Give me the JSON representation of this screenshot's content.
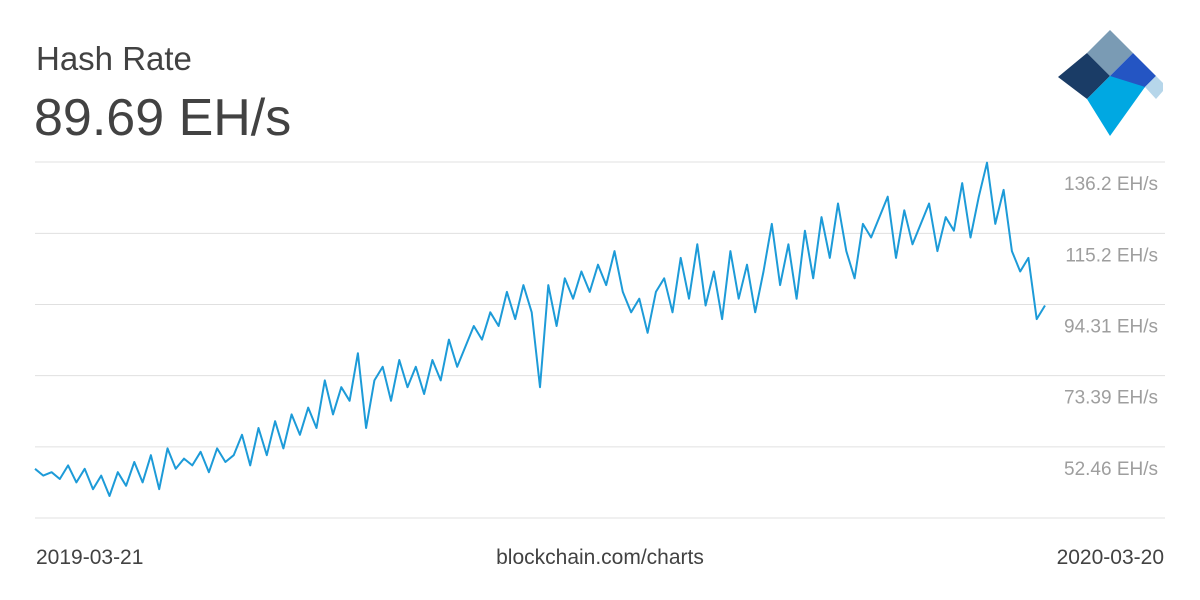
{
  "chart_data": {
    "type": "line",
    "title": "Hash Rate",
    "headline": "89.69 EH/s",
    "source": "blockchain.com/charts",
    "x_start": "2019-03-21",
    "x_end": "2020-03-20",
    "color": "#1d9bd8",
    "grid": true,
    "ylim": [
      31.54,
      136.2
    ],
    "yticks": [
      {
        "value": 52.46,
        "label": "52.46 EH/s"
      },
      {
        "value": 73.39,
        "label": "73.39 EH/s"
      },
      {
        "value": 94.31,
        "label": "94.31 EH/s"
      },
      {
        "value": 115.2,
        "label": "115.2 EH/s"
      },
      {
        "value": 136.2,
        "label": "136.2 EH/s"
      }
    ],
    "values": [
      46,
      44,
      45,
      43,
      47,
      42,
      46,
      40,
      44,
      38,
      45,
      41,
      48,
      42,
      50,
      40,
      52,
      46,
      49,
      47,
      51,
      45,
      52,
      48,
      50,
      56,
      47,
      58,
      50,
      60,
      52,
      62,
      56,
      64,
      58,
      72,
      62,
      70,
      66,
      80,
      58,
      72,
      76,
      66,
      78,
      70,
      76,
      68,
      78,
      72,
      84,
      76,
      82,
      88,
      84,
      92,
      88,
      98,
      90,
      100,
      92,
      70,
      100,
      88,
      102,
      96,
      104,
      98,
      106,
      100,
      110,
      98,
      92,
      96,
      86,
      98,
      102,
      92,
      108,
      96,
      112,
      94,
      104,
      90,
      110,
      96,
      106,
      92,
      104,
      118,
      100,
      112,
      96,
      116,
      102,
      120,
      108,
      124,
      110,
      102,
      118,
      114,
      120,
      126,
      108,
      122,
      112,
      118,
      124,
      110,
      120,
      116,
      130,
      114,
      126,
      136,
      118,
      128,
      110,
      104,
      108,
      90,
      94
    ]
  }
}
